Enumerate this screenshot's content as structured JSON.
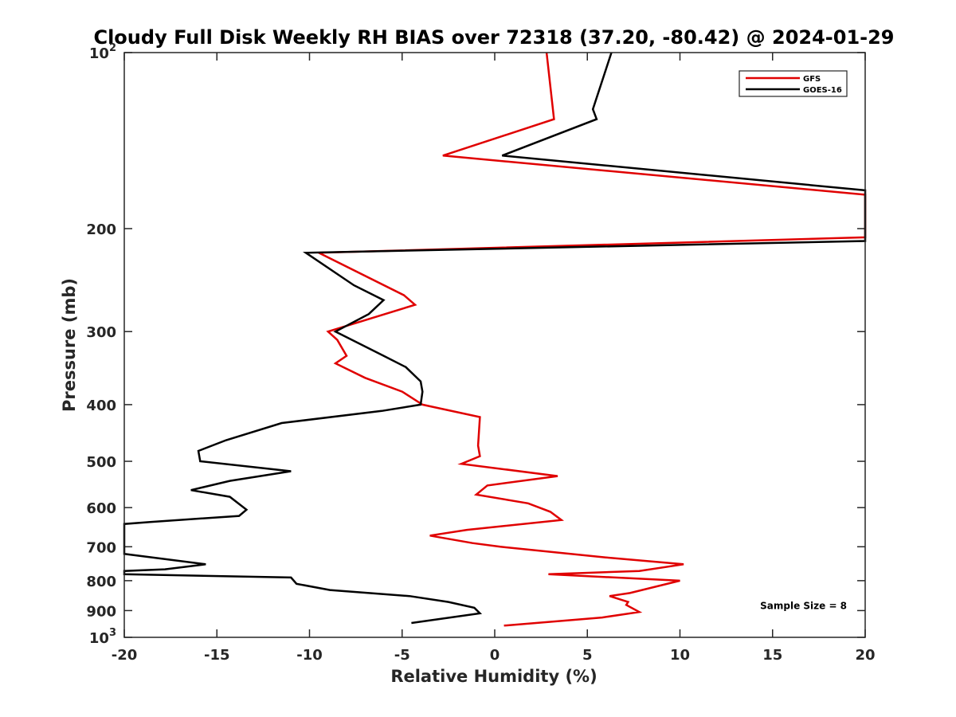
{
  "chart_data": {
    "type": "line",
    "title": "Cloudy Full Disk Weekly RH BIAS over 72318 (37.20, -80.42) @ 2024-01-29",
    "xlabel": "Relative Humidity (%)",
    "ylabel": "Pressure (mb)",
    "xlim": [
      -20,
      20
    ],
    "ylim": [
      100,
      1000
    ],
    "yscale": "log",
    "y_reversed": true,
    "x_ticks": [
      -20,
      -15,
      -10,
      -5,
      0,
      5,
      10,
      15,
      20
    ],
    "x_tick_labels": [
      "-20",
      "-15",
      "-10",
      "-5",
      "0",
      "5",
      "10",
      "15",
      "20"
    ],
    "y_ticks": [
      100,
      200,
      300,
      400,
      500,
      600,
      700,
      800,
      900,
      1000
    ],
    "y_tick_labels": [
      {
        "base": "10",
        "exp": "2"
      },
      {
        "base": "200",
        "exp": ""
      },
      {
        "base": "300",
        "exp": ""
      },
      {
        "base": "400",
        "exp": ""
      },
      {
        "base": "500",
        "exp": ""
      },
      {
        "base": "600",
        "exp": ""
      },
      {
        "base": "700",
        "exp": ""
      },
      {
        "base": "800",
        "exp": ""
      },
      {
        "base": "900",
        "exp": ""
      },
      {
        "base": "10",
        "exp": "3"
      }
    ],
    "legend_position": "top-right",
    "series": [
      {
        "name": "GFS",
        "color": "#e00000",
        "points": [
          [
            2.8,
            100
          ],
          [
            3.2,
            130
          ],
          [
            -2.8,
            150
          ],
          [
            20,
            175
          ],
          [
            20,
            207
          ],
          [
            -9.5,
            220
          ],
          [
            -4.9,
            260
          ],
          [
            -4.3,
            270
          ],
          [
            -9,
            300
          ],
          [
            -8.5,
            310
          ],
          [
            -8,
            330
          ],
          [
            -8.6,
            340
          ],
          [
            -7,
            360
          ],
          [
            -5,
            380
          ],
          [
            -3.9,
            400
          ],
          [
            -0.8,
            420
          ],
          [
            -0.9,
            470
          ],
          [
            -0.8,
            490
          ],
          [
            -1.8,
            505
          ],
          [
            3.4,
            530
          ],
          [
            -0.4,
            550
          ],
          [
            -1,
            570
          ],
          [
            1.8,
            590
          ],
          [
            3,
            610
          ],
          [
            3.6,
            630
          ],
          [
            -1.5,
            655
          ],
          [
            -3.5,
            670
          ],
          [
            -1.2,
            690
          ],
          [
            0.3,
            700
          ],
          [
            6,
            730
          ],
          [
            10.2,
            750
          ],
          [
            7.8,
            770
          ],
          [
            2.9,
            780
          ],
          [
            10,
            800
          ],
          [
            7.3,
            840
          ],
          [
            6.2,
            850
          ],
          [
            7.2,
            870
          ],
          [
            7.1,
            880
          ],
          [
            7.8,
            905
          ],
          [
            5.8,
            925
          ],
          [
            0.5,
            955
          ]
        ]
      },
      {
        "name": "GOES-16",
        "color": "#000000",
        "points": [
          [
            6.3,
            100
          ],
          [
            5.3,
            125
          ],
          [
            5.5,
            130
          ],
          [
            0.4,
            150
          ],
          [
            20,
            172
          ],
          [
            20,
            210
          ],
          [
            -10.2,
            220
          ],
          [
            -7.6,
            250
          ],
          [
            -6,
            265
          ],
          [
            -6.8,
            280
          ],
          [
            -8.6,
            300
          ],
          [
            -6,
            330
          ],
          [
            -4.8,
            345
          ],
          [
            -4,
            365
          ],
          [
            -3.9,
            380
          ],
          [
            -4,
            400
          ],
          [
            -6.1,
            410
          ],
          [
            -11.5,
            430
          ],
          [
            -14.5,
            460
          ],
          [
            -16,
            480
          ],
          [
            -15.9,
            500
          ],
          [
            -11,
            520
          ],
          [
            -14.3,
            540
          ],
          [
            -16.4,
            560
          ],
          [
            -14.3,
            575
          ],
          [
            -13.4,
            605
          ],
          [
            -13.8,
            620
          ],
          [
            -18.6,
            635
          ],
          [
            -20,
            640
          ],
          [
            -20,
            720
          ],
          [
            -15.6,
            750
          ],
          [
            -17.8,
            765
          ],
          [
            -20,
            770
          ],
          [
            -20,
            780
          ],
          [
            -11,
            790
          ],
          [
            -10.7,
            810
          ],
          [
            -8.9,
            830
          ],
          [
            -4.6,
            850
          ],
          [
            -2.5,
            870
          ],
          [
            -1.1,
            890
          ],
          [
            -0.8,
            910
          ],
          [
            -4.5,
            945
          ]
        ]
      }
    ],
    "annotations": [
      {
        "text": "Sample Size = 8",
        "x": 14.5,
        "y": 915
      }
    ]
  }
}
